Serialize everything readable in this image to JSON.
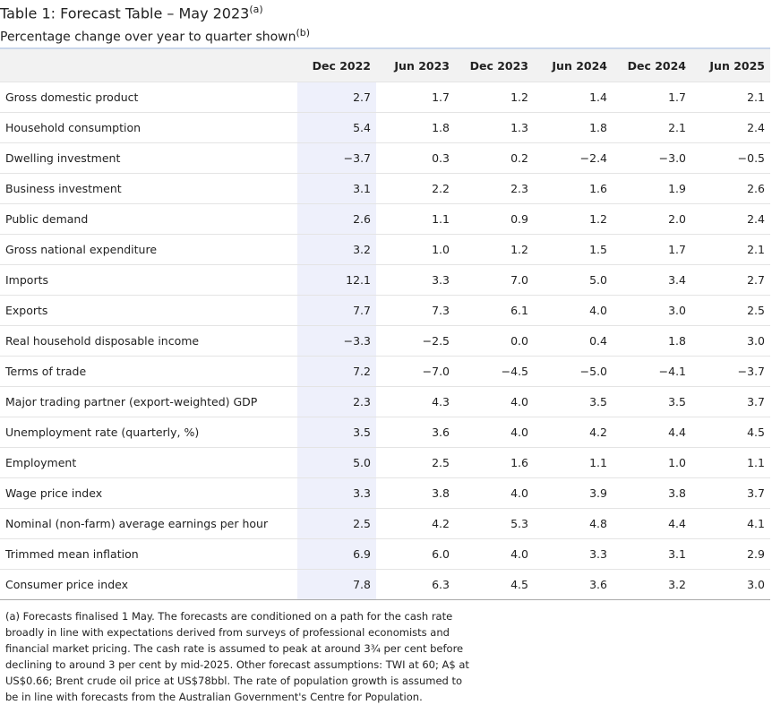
{
  "header": {
    "title": "Table 1: Forecast Table – May 2023",
    "title_note": "(a)",
    "subtitle": "Percentage change over year to quarter shown",
    "subtitle_note": "(b)"
  },
  "table": {
    "columns": [
      "Dec 2022",
      "Jun 2023",
      "Dec 2023",
      "Jun 2024",
      "Dec 2024",
      "Jun 2025"
    ],
    "rows": [
      [
        "Gross domestic product",
        "2.7",
        "1.7",
        "1.2",
        "1.4",
        "1.7",
        "2.1"
      ],
      [
        "Household consumption",
        "5.4",
        "1.8",
        "1.3",
        "1.8",
        "2.1",
        "2.4"
      ],
      [
        "Dwelling investment",
        "−3.7",
        "0.3",
        "0.2",
        "−2.4",
        "−3.0",
        "−0.5"
      ],
      [
        "Business investment",
        "3.1",
        "2.2",
        "2.3",
        "1.6",
        "1.9",
        "2.6"
      ],
      [
        "Public demand",
        "2.6",
        "1.1",
        "0.9",
        "1.2",
        "2.0",
        "2.4"
      ],
      [
        "Gross national expenditure",
        "3.2",
        "1.0",
        "1.2",
        "1.5",
        "1.7",
        "2.1"
      ],
      [
        "Imports",
        "12.1",
        "3.3",
        "7.0",
        "5.0",
        "3.4",
        "2.7"
      ],
      [
        "Exports",
        "7.7",
        "7.3",
        "6.1",
        "4.0",
        "3.0",
        "2.5"
      ],
      [
        "Real household disposable income",
        "−3.3",
        "−2.5",
        "0.0",
        "0.4",
        "1.8",
        "3.0"
      ],
      [
        "Terms of trade",
        "7.2",
        "−7.0",
        "−4.5",
        "−5.0",
        "−4.1",
        "−3.7"
      ],
      [
        "Major trading partner (export-weighted) GDP",
        "2.3",
        "4.3",
        "4.0",
        "3.5",
        "3.5",
        "3.7"
      ],
      [
        "Unemployment rate (quarterly, %)",
        "3.5",
        "3.6",
        "4.0",
        "4.2",
        "4.4",
        "4.5"
      ],
      [
        "Employment",
        "5.0",
        "2.5",
        "1.6",
        "1.1",
        "1.0",
        "1.1"
      ],
      [
        "Wage price index",
        "3.3",
        "3.8",
        "4.0",
        "3.9",
        "3.8",
        "3.7"
      ],
      [
        "Nominal (non-farm) average earnings per hour",
        "2.5",
        "4.2",
        "5.3",
        "4.8",
        "4.4",
        "4.1"
      ],
      [
        "Trimmed mean inflation",
        "6.9",
        "6.0",
        "4.0",
        "3.3",
        "3.1",
        "2.9"
      ],
      [
        "Consumer price index",
        "7.8",
        "6.3",
        "4.5",
        "3.6",
        "3.2",
        "3.0"
      ]
    ]
  },
  "footnotes": [
    "(a) Forecasts finalised 1 May. The forecasts are conditioned on a path for the cash rate broadly in line with expectations derived from surveys of professional economists and financial market pricing. The cash rate is assumed to peak at around 3¾ per cent before declining to around 3 per cent by mid-2025. Other forecast assumptions: TWI at 60; A$ at US$0.66; Brent crude oil price at US$78bbl. The rate of population growth is assumed to be in line with forecasts from the Australian Government's Centre for Population."
  ]
}
